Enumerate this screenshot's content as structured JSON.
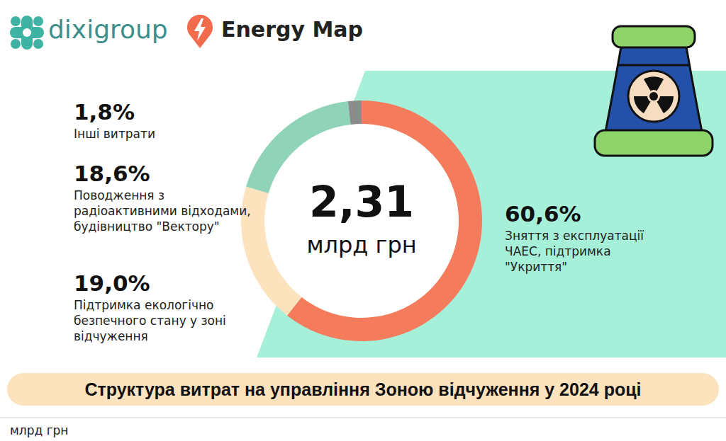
{
  "logos": [
    "dixigroup",
    "Energy Map"
  ],
  "footer": "млрд грн",
  "chart_data": {
    "type": "pie",
    "title": "Структура витрат на управління Зоною відчуження у 2024 році",
    "total": 2.31,
    "total_label": "2,31",
    "total_unit": "млрд грн",
    "categories": [
      "Зняття з експлуатації ЧАЕС, підтримка \"Укриття\"",
      "Підтримка екологічно безпечного стану у зоні відчуження",
      "Поводження з радіоактивними відходами, будівництво \"Вектору\"",
      "Інші витрати"
    ],
    "values": [
      60.6,
      19.0,
      18.6,
      1.8
    ],
    "value_labels": [
      "60,6%",
      "19,0%",
      "18,6%",
      "1,8%"
    ],
    "colors": [
      "#f47c5c",
      "#fde3bd",
      "#8fd3b9",
      "#8c8c8c"
    ],
    "data_labels": true
  }
}
